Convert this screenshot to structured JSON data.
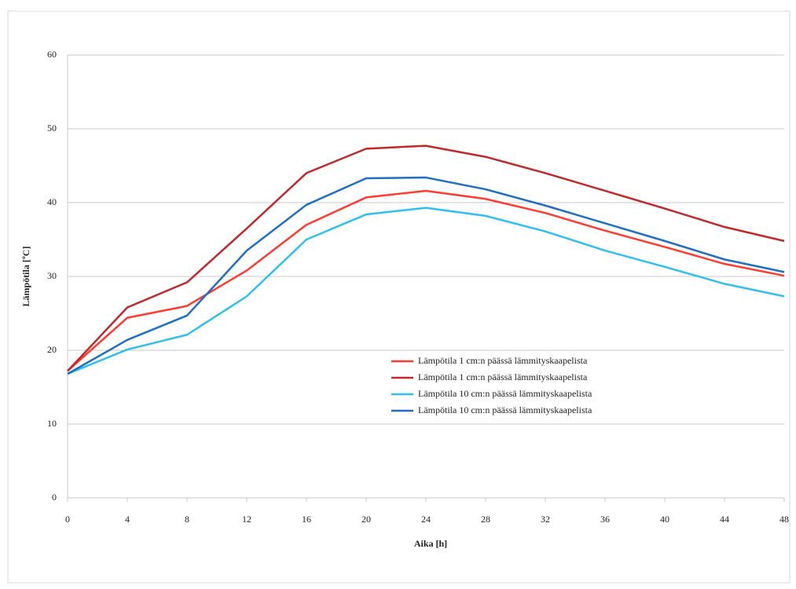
{
  "chart_data": {
    "type": "line",
    "x_label": "Aika [h]",
    "y_label": "Lämpötila [ºC]",
    "x": [
      0,
      4,
      8,
      12,
      16,
      20,
      24,
      28,
      32,
      36,
      40,
      44,
      48
    ],
    "xlim": [
      0,
      48
    ],
    "xticks": [
      0,
      4,
      8,
      12,
      16,
      20,
      24,
      28,
      32,
      36,
      40,
      44,
      48
    ],
    "ylim": [
      0,
      60
    ],
    "yticks": [
      0,
      10,
      20,
      30,
      40,
      50,
      60
    ],
    "grid": true,
    "series": [
      {
        "name": "Lämpötila 1 cm:n päässä lämmityskaapelista",
        "color": "#ff3b2f",
        "values": [
          17.2,
          24.4,
          26,
          30.8,
          37,
          40.7,
          41.6,
          40.5,
          38.6,
          36.2,
          34,
          31.7,
          30.1
        ]
      },
      {
        "name": "Lämpötila 1 cm:n päässä lämmityskaapelista",
        "color": "#c0282a",
        "values": [
          17.2,
          25.8,
          29.2,
          36.5,
          44,
          47.3,
          47.7,
          46.2,
          44,
          41.6,
          39.2,
          36.7,
          34.8
        ]
      },
      {
        "name": "Lämpötila 10 cm:n päässä lämmityskaapelista",
        "color": "#2ec0f0",
        "values": [
          16.8,
          20.1,
          22.1,
          27.3,
          35,
          38.4,
          39.3,
          38.2,
          36.1,
          33.5,
          31.3,
          29,
          27.3
        ]
      },
      {
        "name": "Lämpötila 10 cm:n päässä lämmityskaapelista",
        "color": "#1e6fc4",
        "values": [
          16.8,
          21.4,
          24.7,
          33.5,
          39.7,
          43.3,
          43.4,
          41.8,
          39.6,
          37.2,
          34.8,
          32.3,
          30.6
        ]
      }
    ]
  }
}
